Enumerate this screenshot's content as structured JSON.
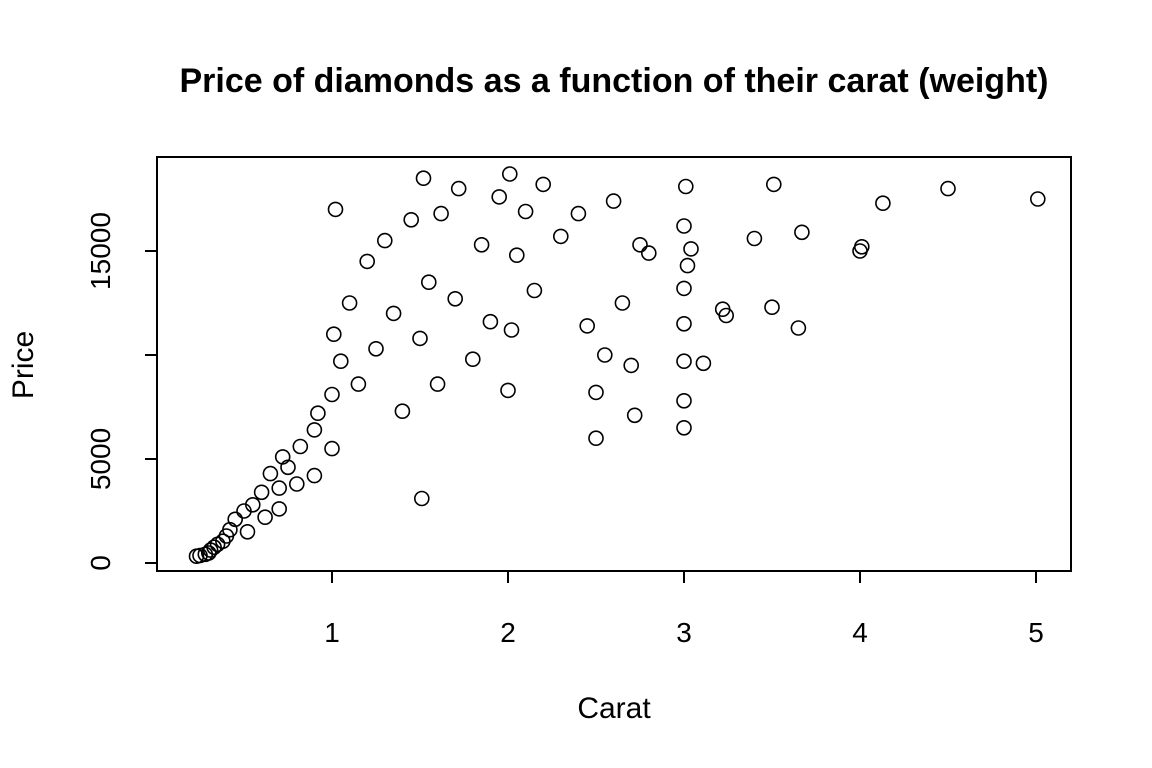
{
  "chart_data": {
    "type": "scatter",
    "title": "Price of diamonds as a function of their carat (weight)",
    "xlabel": "Carat",
    "ylabel": "Price",
    "xlim": [
      0.2,
      5.2
    ],
    "ylim": [
      0,
      19000
    ],
    "xticks": [
      1,
      2,
      3,
      4,
      5
    ],
    "yticks": [
      0,
      5000,
      15000
    ],
    "grid": false,
    "marker": "open-circle",
    "points": [
      [
        0.23,
        326
      ],
      [
        0.25,
        360
      ],
      [
        0.28,
        420
      ],
      [
        0.3,
        480
      ],
      [
        0.31,
        620
      ],
      [
        0.33,
        760
      ],
      [
        0.35,
        900
      ],
      [
        0.38,
        1050
      ],
      [
        0.4,
        1300
      ],
      [
        0.42,
        1600
      ],
      [
        0.45,
        2100
      ],
      [
        0.5,
        2500
      ],
      [
        0.52,
        1500
      ],
      [
        0.55,
        2800
      ],
      [
        0.6,
        3400
      ],
      [
        0.62,
        2200
      ],
      [
        0.65,
        4300
      ],
      [
        0.7,
        3600
      ],
      [
        0.7,
        2600
      ],
      [
        0.72,
        5100
      ],
      [
        0.75,
        4600
      ],
      [
        0.8,
        3800
      ],
      [
        0.82,
        5600
      ],
      [
        0.9,
        4200
      ],
      [
        0.9,
        6400
      ],
      [
        0.92,
        7200
      ],
      [
        1.0,
        5500
      ],
      [
        1.0,
        8100
      ],
      [
        1.01,
        11000
      ],
      [
        1.02,
        17000
      ],
      [
        1.05,
        9700
      ],
      [
        1.1,
        12500
      ],
      [
        1.15,
        8600
      ],
      [
        1.2,
        14500
      ],
      [
        1.25,
        10300
      ],
      [
        1.3,
        15500
      ],
      [
        1.35,
        12000
      ],
      [
        1.4,
        7300
      ],
      [
        1.45,
        16500
      ],
      [
        1.5,
        10800
      ],
      [
        1.51,
        3100
      ],
      [
        1.52,
        18500
      ],
      [
        1.55,
        13500
      ],
      [
        1.6,
        8600
      ],
      [
        1.62,
        16800
      ],
      [
        1.7,
        12700
      ],
      [
        1.72,
        18000
      ],
      [
        1.8,
        9800
      ],
      [
        1.85,
        15300
      ],
      [
        1.9,
        11600
      ],
      [
        1.95,
        17600
      ],
      [
        2.0,
        8300
      ],
      [
        2.01,
        18700
      ],
      [
        2.02,
        11200
      ],
      [
        2.05,
        14800
      ],
      [
        2.1,
        16900
      ],
      [
        2.15,
        13100
      ],
      [
        2.2,
        18200
      ],
      [
        2.3,
        15700
      ],
      [
        2.4,
        16800
      ],
      [
        2.45,
        11400
      ],
      [
        2.5,
        6000
      ],
      [
        2.5,
        8200
      ],
      [
        2.55,
        10000
      ],
      [
        2.6,
        17400
      ],
      [
        2.65,
        12500
      ],
      [
        2.7,
        9500
      ],
      [
        2.72,
        7100
      ],
      [
        2.75,
        15300
      ],
      [
        2.8,
        14900
      ],
      [
        3.0,
        6500
      ],
      [
        3.0,
        7800
      ],
      [
        3.0,
        9700
      ],
      [
        3.0,
        11500
      ],
      [
        3.0,
        13200
      ],
      [
        3.0,
        16200
      ],
      [
        3.01,
        18100
      ],
      [
        3.02,
        14300
      ],
      [
        3.04,
        15100
      ],
      [
        3.11,
        9600
      ],
      [
        3.22,
        12200
      ],
      [
        3.24,
        11900
      ],
      [
        3.4,
        15600
      ],
      [
        3.5,
        12300
      ],
      [
        3.51,
        18200
      ],
      [
        3.65,
        11300
      ],
      [
        3.67,
        15900
      ],
      [
        4.0,
        15000
      ],
      [
        4.01,
        15200
      ],
      [
        4.13,
        17300
      ],
      [
        4.5,
        18000
      ],
      [
        5.01,
        17500
      ]
    ]
  }
}
